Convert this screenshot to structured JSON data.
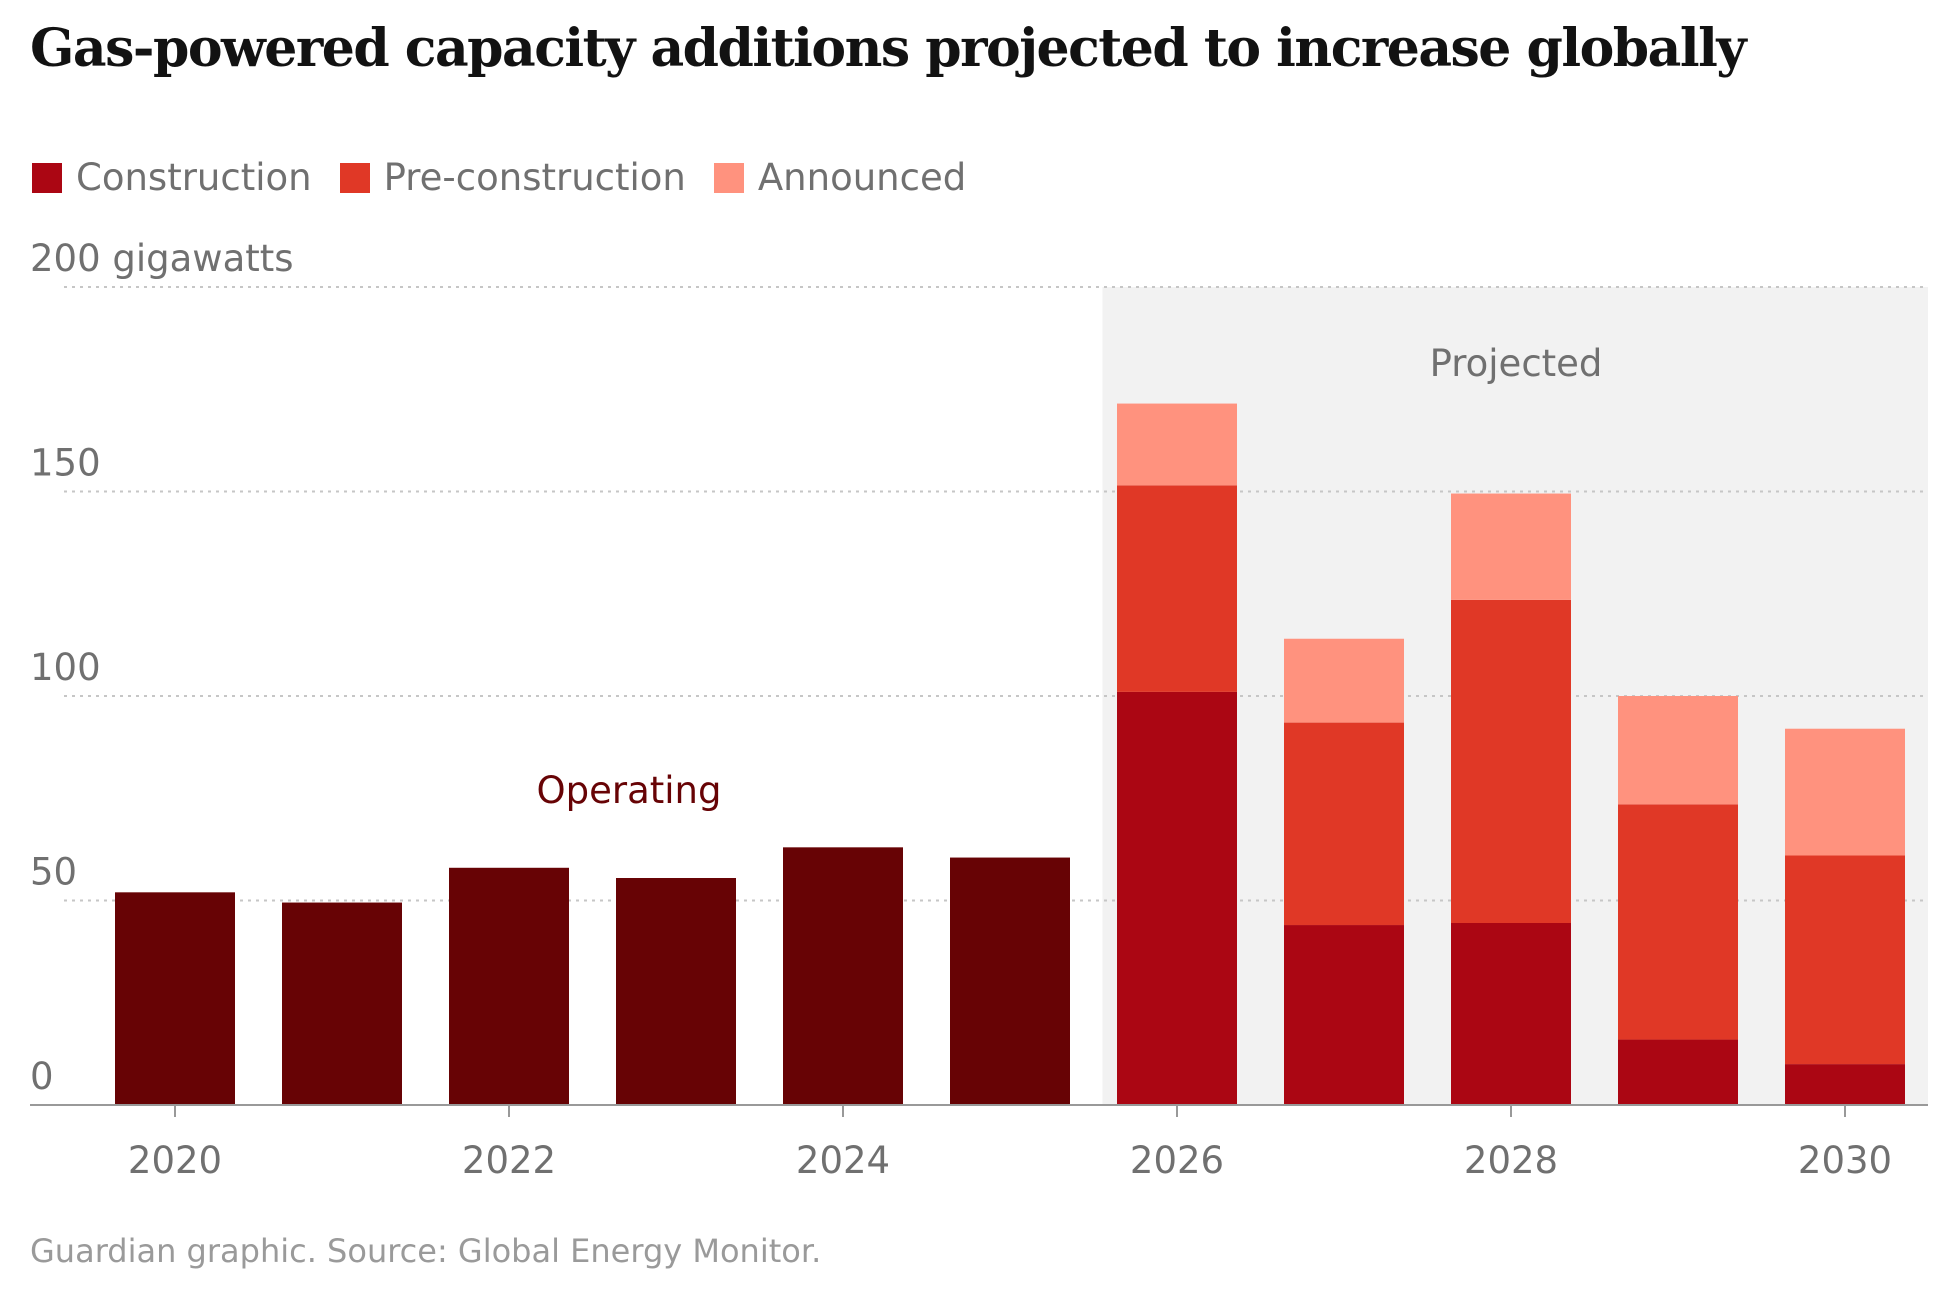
{
  "chart_data": {
    "type": "bar",
    "stacked": true,
    "title": "Gas-powered capacity additions projected to increase globally",
    "ylabel": "gigawatts",
    "y_axis_top_label": "200 gigawatts",
    "ylim": [
      0,
      200
    ],
    "yticks": [
      0,
      50,
      100,
      150,
      200
    ],
    "y_tick_labels": [
      "0",
      "50",
      "100",
      "150",
      "200 gigawatts"
    ],
    "categories": [
      "2020",
      "2021",
      "2022",
      "2023",
      "2024",
      "2025",
      "2026",
      "2027",
      "2028",
      "2029",
      "2030"
    ],
    "x_tick_labels": [
      "2020",
      "2022",
      "2024",
      "2026",
      "2028",
      "2030"
    ],
    "grid": true,
    "legend_position": "top-left",
    "operating": {
      "label": "Operating",
      "color": "#670305",
      "values": [
        52,
        49.5,
        58,
        55.5,
        63,
        60.5,
        null,
        null,
        null,
        null,
        null
      ]
    },
    "series": [
      {
        "name": "Construction",
        "color": "#ab0613",
        "values": [
          null,
          null,
          null,
          null,
          null,
          null,
          101,
          44,
          44.5,
          16,
          10
        ]
      },
      {
        "name": "Pre-construction",
        "color": "#e03826",
        "values": [
          null,
          null,
          null,
          null,
          null,
          null,
          50.5,
          49.5,
          79,
          57.5,
          51
        ]
      },
      {
        "name": "Announced",
        "color": "#ff927e",
        "values": [
          null,
          null,
          null,
          null,
          null,
          null,
          20,
          20.5,
          26,
          26.5,
          31
        ]
      }
    ],
    "annotations": [
      {
        "text": "Operating",
        "color": "#670305"
      },
      {
        "text": "Projected",
        "color": "#707070",
        "shaded_range": [
          "2026",
          "2030"
        ],
        "shade_color": "#f2f2f2"
      }
    ],
    "source": "Guardian graphic. Source: Global Energy Monitor."
  }
}
